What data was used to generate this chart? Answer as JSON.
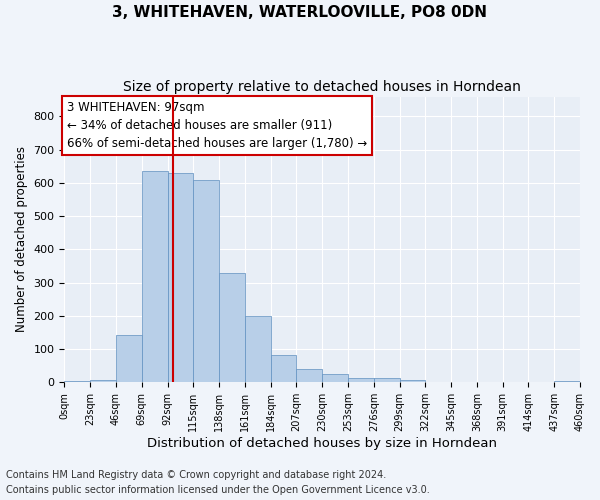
{
  "title1": "3, WHITEHAVEN, WATERLOOVILLE, PO8 0DN",
  "title2": "Size of property relative to detached houses in Horndean",
  "xlabel": "Distribution of detached houses by size in Horndean",
  "ylabel": "Number of detached properties",
  "footnote1": "Contains HM Land Registry data © Crown copyright and database right 2024.",
  "footnote2": "Contains public sector information licensed under the Open Government Licence v3.0.",
  "annotation_line1": "3 WHITEHAVEN: 97sqm",
  "annotation_line2": "← 34% of detached houses are smaller (911)",
  "annotation_line3": "66% of semi-detached houses are larger (1,780) →",
  "bar_color": "#b8cfe8",
  "bar_edge_color": "#6090c0",
  "vline_color": "#cc0000",
  "vline_x": 97,
  "bin_edges": [
    0,
    23,
    46,
    69,
    92,
    115,
    138,
    161,
    184,
    207,
    230,
    253,
    276,
    299,
    322,
    345,
    368,
    391,
    414,
    437,
    460
  ],
  "bin_counts": [
    5,
    8,
    143,
    635,
    630,
    610,
    330,
    200,
    83,
    40,
    25,
    12,
    12,
    8,
    0,
    0,
    0,
    0,
    0,
    5
  ],
  "ylim": [
    0,
    860
  ],
  "yticks": [
    0,
    100,
    200,
    300,
    400,
    500,
    600,
    700,
    800
  ],
  "fig_bg": "#f0f4fa",
  "axes_bg": "#e8eef6",
  "grid_color": "#ffffff",
  "title1_fontsize": 11,
  "title2_fontsize": 10,
  "annotation_fontsize": 8.5,
  "xlabel_fontsize": 9.5,
  "ylabel_fontsize": 8.5,
  "tick_fontsize": 7,
  "footnote_fontsize": 7
}
